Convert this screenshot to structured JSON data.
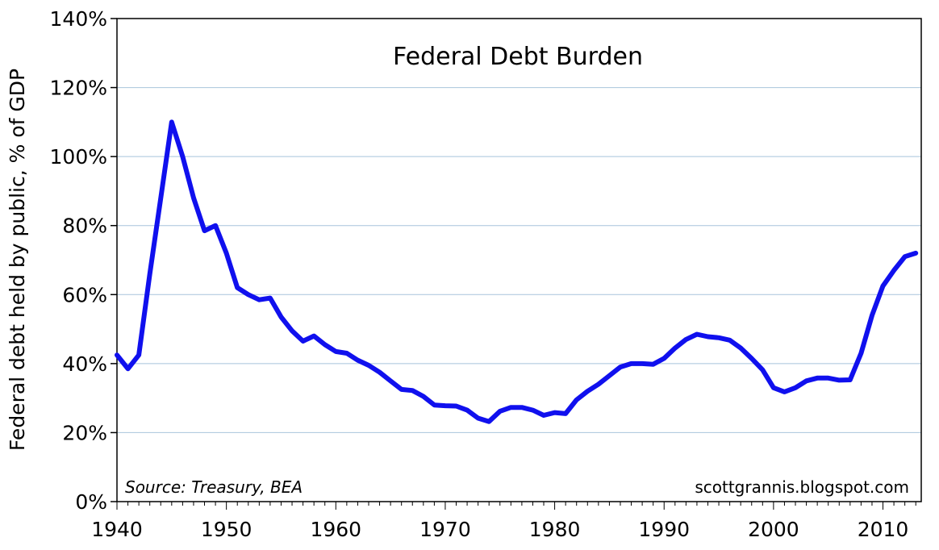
{
  "chart_data": {
    "type": "line",
    "title": "Federal Debt Burden",
    "ylabel": "Federal debt held by public, % of GDP",
    "xlabel": "",
    "source": "Source: Treasury, BEA",
    "credit": "scottgrannis.blogspot.com",
    "xlim": [
      1940,
      2013.5
    ],
    "ylim": [
      0,
      140
    ],
    "x_ticks": [
      1940,
      1950,
      1960,
      1970,
      1980,
      1990,
      2000,
      2010
    ],
    "x_tick_labels": [
      "1940",
      "1950",
      "1960",
      "1970",
      "1980",
      "1990",
      "2000",
      "2010"
    ],
    "y_ticks": [
      0,
      20,
      40,
      60,
      80,
      100,
      120,
      140
    ],
    "y_tick_labels": [
      "0%",
      "20%",
      "40%",
      "60%",
      "80%",
      "100%",
      "120%",
      "140%"
    ],
    "grid": true,
    "series_color": "#1010ee",
    "grid_color": "#a8c4dc",
    "x": [
      1940,
      1941,
      1942,
      1943,
      1944,
      1945,
      1946,
      1947,
      1948,
      1949,
      1950,
      1951,
      1952,
      1953,
      1954,
      1955,
      1956,
      1957,
      1958,
      1959,
      1960,
      1961,
      1962,
      1963,
      1964,
      1965,
      1966,
      1967,
      1968,
      1969,
      1970,
      1971,
      1972,
      1973,
      1974,
      1975,
      1976,
      1977,
      1978,
      1979,
      1980,
      1981,
      1982,
      1983,
      1984,
      1985,
      1986,
      1987,
      1988,
      1989,
      1990,
      1991,
      1992,
      1993,
      1994,
      1995,
      1996,
      1997,
      1998,
      1999,
      2000,
      2001,
      2002,
      2003,
      2004,
      2005,
      2006,
      2007,
      2008,
      2009,
      2010,
      2011,
      2012,
      2013
    ],
    "values": [
      42.5,
      38.5,
      42.5,
      66,
      88,
      110,
      100,
      88,
      78.5,
      80,
      72,
      62,
      60,
      58.5,
      59,
      53.5,
      49.5,
      46.5,
      48,
      45.5,
      43.5,
      43,
      41,
      39.5,
      37.5,
      35,
      32.5,
      32.2,
      30.5,
      28,
      27.8,
      27.7,
      26.5,
      24.2,
      23.2,
      26.2,
      27.3,
      27.3,
      26.5,
      25,
      25.8,
      25.5,
      29.5,
      32,
      34,
      36.5,
      39,
      40,
      40,
      39.8,
      41.5,
      44.5,
      47,
      48.5,
      47.8,
      47.5,
      46.8,
      44.5,
      41.5,
      38.2,
      33,
      31.8,
      33,
      35,
      35.8,
      35.8,
      35.2,
      35.3,
      43,
      54,
      62.5,
      67,
      71,
      72
    ]
  }
}
